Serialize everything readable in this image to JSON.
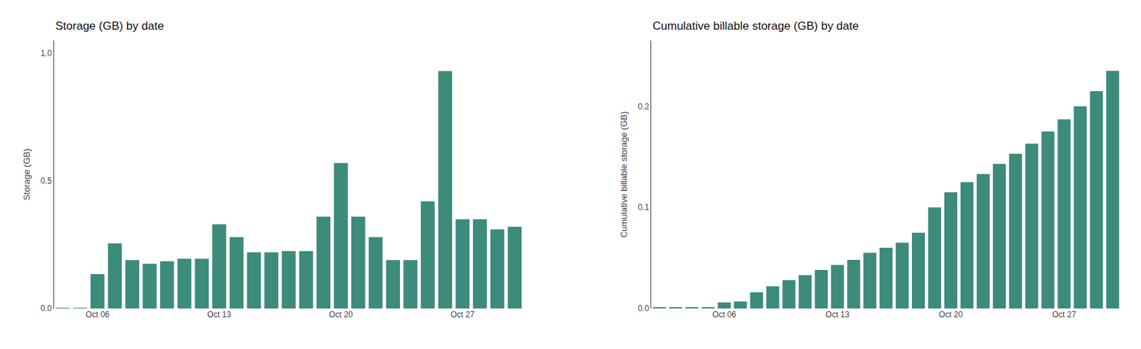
{
  "chart_data": [
    {
      "type": "bar",
      "title": "Storage (GB) by date",
      "y_label": "Storage (GB)",
      "categories": [
        null,
        null,
        "Oct 06",
        null,
        null,
        null,
        null,
        null,
        null,
        "Oct 13",
        null,
        null,
        null,
        null,
        null,
        null,
        "Oct 20",
        null,
        null,
        null,
        null,
        null,
        null,
        "Oct 27",
        null,
        null,
        null
      ],
      "values": [
        0.001,
        0.001,
        0.135,
        0.255,
        0.19,
        0.175,
        0.185,
        0.195,
        0.195,
        0.33,
        0.28,
        0.22,
        0.22,
        0.225,
        0.225,
        0.36,
        0.57,
        0.36,
        0.28,
        0.19,
        0.19,
        0.42,
        0.93,
        0.35,
        0.35,
        0.31,
        0.32
      ],
      "color": "#3d8b7a",
      "ylim": [
        0,
        1.05
      ],
      "yticks": [
        {
          "value": 0,
          "label": "0.0"
        },
        0.5,
        {
          "value": 1,
          "label": "1.0"
        }
      ],
      "grid": false
    },
    {
      "type": "bar",
      "title": "Cumulative billable storage (GB) by date",
      "y_label": "Cumulative billable storage (GB)",
      "categories": [
        null,
        null,
        null,
        null,
        "Oct 06",
        null,
        null,
        null,
        null,
        null,
        null,
        "Oct 13",
        null,
        null,
        null,
        null,
        null,
        null,
        "Oct 20",
        null,
        null,
        null,
        null,
        null,
        null,
        "Oct 27",
        null,
        null,
        null
      ],
      "values": [
        0.001,
        0.001,
        0.001,
        0.001,
        0.006,
        0.007,
        0.016,
        0.022,
        0.028,
        0.033,
        0.038,
        0.043,
        0.048,
        0.055,
        0.06,
        0.065,
        0.075,
        0.1,
        0.115,
        0.125,
        0.133,
        0.143,
        0.153,
        0.163,
        0.175,
        0.187,
        0.2,
        0.215,
        0.235
      ],
      "color": "#3d8b7a",
      "ylim": [
        0,
        0.265
      ],
      "yticks": [
        {
          "value": 0,
          "label": "0.0"
        },
        0.1,
        0.2
      ],
      "grid": false
    }
  ]
}
